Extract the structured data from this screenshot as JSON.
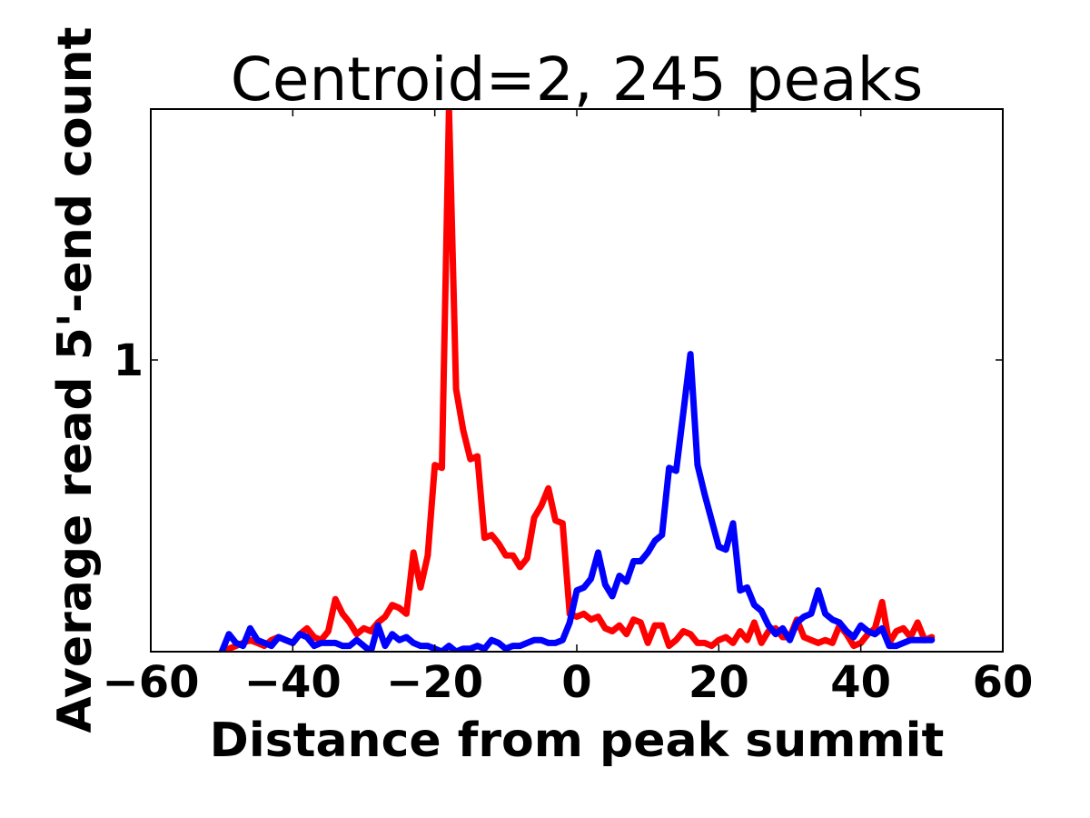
{
  "chart_data": {
    "type": "line",
    "title": "Centroid=2, 245 peaks",
    "xlabel": "Distance from peak summit",
    "ylabel": "Average read 5'-end count",
    "xlim": [
      -60,
      60
    ],
    "ylim": [
      0,
      1.86
    ],
    "xticks": [
      -60,
      -40,
      -20,
      0,
      20,
      40,
      60
    ],
    "xtick_labels": [
      "−60",
      "−40",
      "−20",
      "0",
      "20",
      "40",
      "60"
    ],
    "yticks": [
      1
    ],
    "ytick_labels": [
      "1"
    ],
    "grid": false,
    "legend": "none",
    "x": [
      -50,
      -49,
      -48,
      -47,
      -46,
      -45,
      -44,
      -43,
      -42,
      -41,
      -40,
      -39,
      -38,
      -37,
      -36,
      -35,
      -34,
      -33,
      -32,
      -31,
      -30,
      -29,
      -28,
      -27,
      -26,
      -25,
      -24,
      -23,
      -22,
      -21,
      -20,
      -19,
      -18,
      -17,
      -16,
      -15,
      -14,
      -13,
      -12,
      -11,
      -10,
      -9,
      -8,
      -7,
      -6,
      -5,
      -4,
      -3,
      -2,
      -1,
      0,
      1,
      2,
      3,
      4,
      5,
      6,
      7,
      8,
      9,
      10,
      11,
      12,
      13,
      14,
      15,
      16,
      17,
      18,
      19,
      20,
      21,
      22,
      23,
      24,
      25,
      26,
      27,
      28,
      29,
      30,
      31,
      32,
      33,
      34,
      35,
      36,
      37,
      38,
      39,
      40,
      41,
      42,
      43,
      44,
      45,
      46,
      47,
      48,
      49,
      50
    ],
    "series": [
      {
        "color": "#ff0000",
        "values": [
          0.0,
          0.01,
          0.02,
          0.03,
          0.04,
          0.03,
          0.02,
          0.04,
          0.05,
          0.04,
          0.03,
          0.06,
          0.08,
          0.05,
          0.04,
          0.07,
          0.18,
          0.13,
          0.1,
          0.06,
          0.08,
          0.07,
          0.1,
          0.12,
          0.16,
          0.15,
          0.13,
          0.34,
          0.22,
          0.33,
          0.64,
          0.63,
          1.86,
          0.9,
          0.76,
          0.66,
          0.67,
          0.39,
          0.4,
          0.37,
          0.33,
          0.33,
          0.29,
          0.32,
          0.46,
          0.5,
          0.56,
          0.45,
          0.44,
          0.13,
          0.12,
          0.13,
          0.11,
          0.12,
          0.08,
          0.07,
          0.09,
          0.06,
          0.11,
          0.1,
          0.03,
          0.09,
          0.09,
          0.02,
          0.04,
          0.07,
          0.06,
          0.03,
          0.03,
          0.02,
          0.04,
          0.05,
          0.03,
          0.07,
          0.04,
          0.1,
          0.03,
          0.07,
          0.08,
          0.05,
          0.05,
          0.11,
          0.05,
          0.04,
          0.03,
          0.04,
          0.03,
          0.09,
          0.06,
          0.02,
          0.03,
          0.06,
          0.08,
          0.17,
          0.03,
          0.07,
          0.08,
          0.05,
          0.1,
          0.04,
          0.05
        ]
      },
      {
        "color": "#0000ff",
        "values": [
          0.0,
          0.06,
          0.03,
          0.02,
          0.08,
          0.04,
          0.03,
          0.02,
          0.05,
          0.04,
          0.03,
          0.06,
          0.05,
          0.02,
          0.03,
          0.03,
          0.03,
          0.02,
          0.02,
          0.04,
          0.02,
          0.0,
          0.09,
          0.02,
          0.06,
          0.04,
          0.05,
          0.03,
          0.02,
          0.02,
          0.01,
          0.0,
          0.02,
          0.0,
          0.01,
          0.01,
          0.02,
          0.01,
          0.04,
          0.03,
          0.01,
          0.02,
          0.02,
          0.03,
          0.04,
          0.04,
          0.03,
          0.03,
          0.04,
          0.1,
          0.21,
          0.22,
          0.25,
          0.34,
          0.23,
          0.19,
          0.26,
          0.24,
          0.31,
          0.31,
          0.34,
          0.38,
          0.4,
          0.63,
          0.62,
          0.82,
          1.02,
          0.64,
          0.54,
          0.45,
          0.36,
          0.35,
          0.44,
          0.21,
          0.22,
          0.16,
          0.14,
          0.09,
          0.06,
          0.08,
          0.04,
          0.1,
          0.12,
          0.13,
          0.21,
          0.13,
          0.11,
          0.1,
          0.07,
          0.05,
          0.09,
          0.07,
          0.06,
          0.08,
          0.02,
          0.02,
          0.03,
          0.04,
          0.04,
          0.04,
          0.04
        ]
      }
    ]
  }
}
